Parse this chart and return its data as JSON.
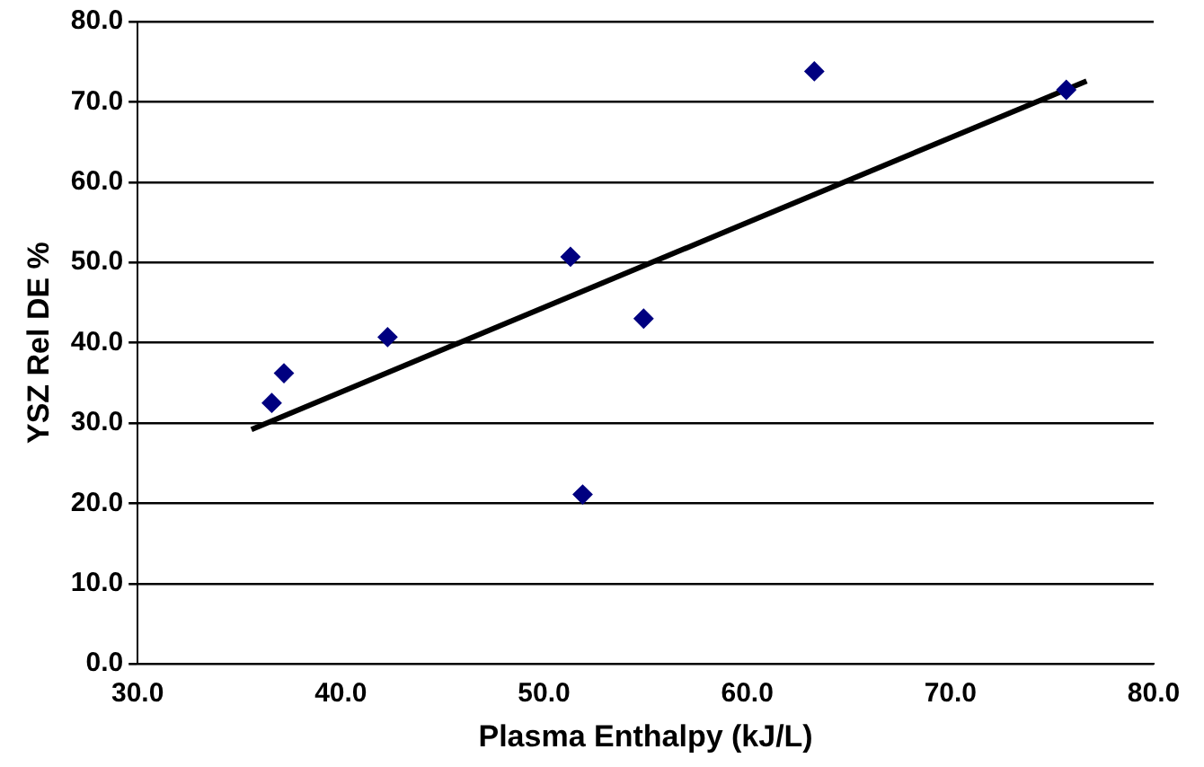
{
  "chart_data": {
    "type": "scatter",
    "xlabel": "Plasma Enthalpy (kJ/L)",
    "ylabel": "YSZ Rel DE %",
    "xlim": [
      30,
      80
    ],
    "xticks": [
      {
        "value": 30,
        "label": "30.0"
      },
      {
        "value": 40,
        "label": "40.0"
      },
      {
        "value": 50,
        "label": "50.0"
      },
      {
        "value": 60,
        "label": "60.0"
      },
      {
        "value": 70,
        "label": "70.0"
      },
      {
        "value": 80,
        "label": "80.0"
      }
    ],
    "ylim": [
      0,
      80
    ],
    "yticks": [
      {
        "value": 0,
        "label": "0.0"
      },
      {
        "value": 10,
        "label": "10.0"
      },
      {
        "value": 20,
        "label": "20.0"
      },
      {
        "value": 30,
        "label": "30.0"
      },
      {
        "value": 40,
        "label": "40.0"
      },
      {
        "value": 50,
        "label": "50.0"
      },
      {
        "value": 60,
        "label": "60.0"
      },
      {
        "value": 70,
        "label": "70.0"
      },
      {
        "value": 80,
        "label": "80.0"
      }
    ],
    "grid": "y",
    "legend": false,
    "marker": "diamond",
    "series": [
      {
        "color": "#000080",
        "x": [
          36.6,
          37.2,
          42.3,
          51.3,
          51.9,
          54.9,
          63.3,
          75.7
        ],
        "values": [
          32.5,
          36.2,
          40.7,
          50.7,
          21.1,
          43.0,
          73.8,
          71.5
        ]
      },
      {
        "type": "line",
        "color": "#000000",
        "marker": "none",
        "line_style": "solid",
        "x": [
          35.6,
          76.7
        ],
        "values": [
          29.2,
          72.6
        ]
      }
    ]
  }
}
